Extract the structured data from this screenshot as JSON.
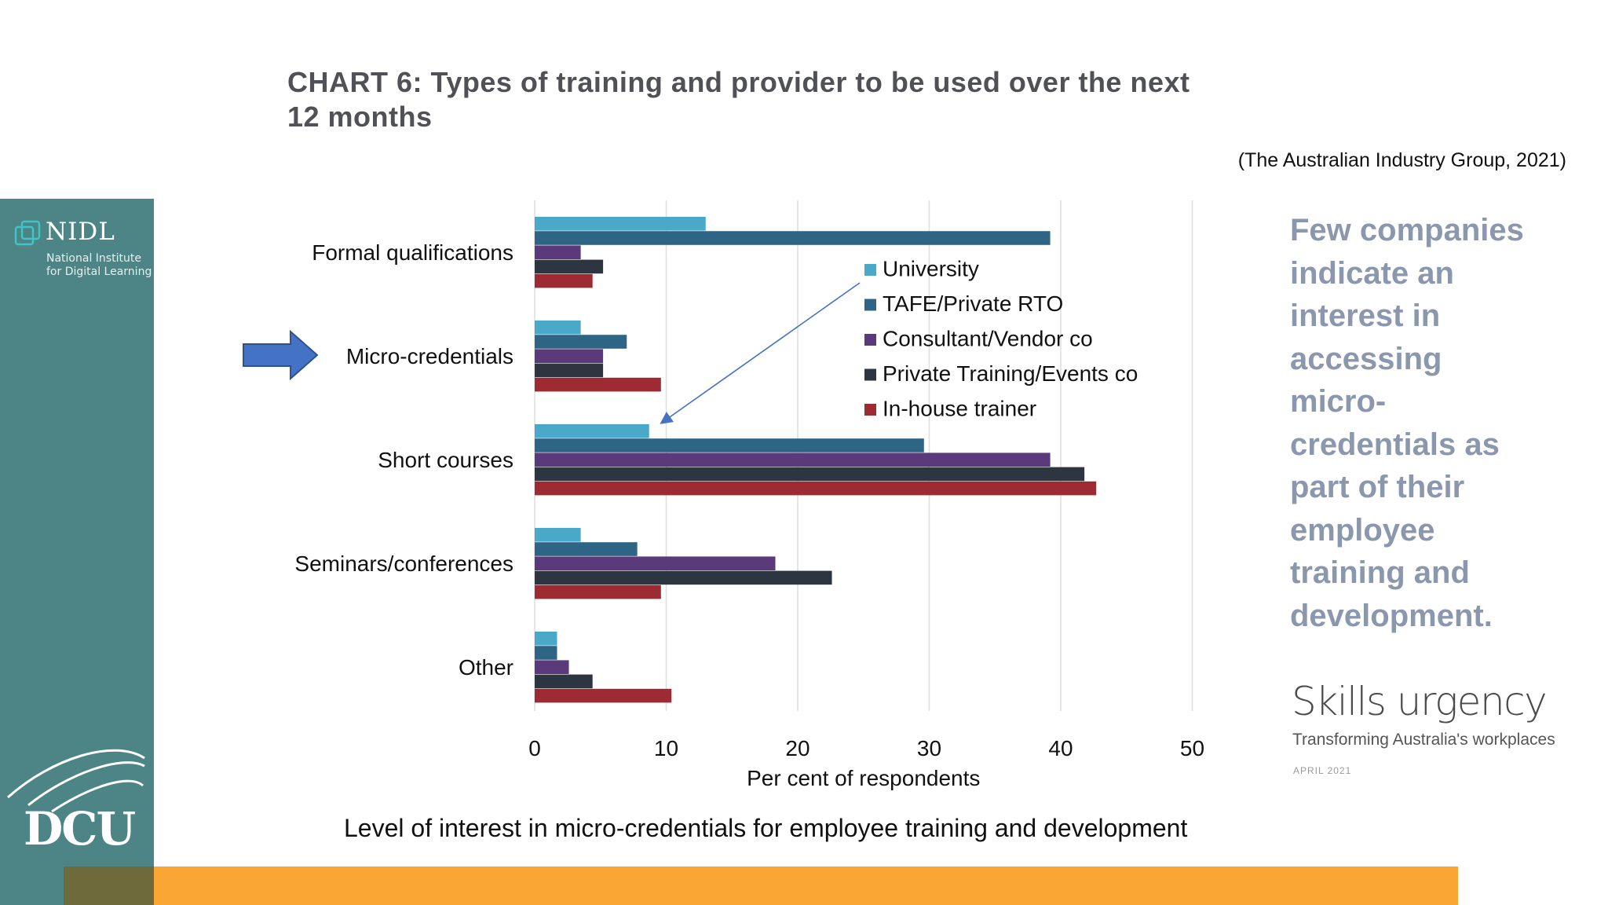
{
  "slide": {
    "title_line1": "CHART 6: Types of training and provider to be used over the next",
    "title_line2": "12 months",
    "citation": "(The Australian Industry Group, 2021)",
    "caption": "Level of interest in micro-credentials for employee training and development",
    "side_note": "Few companies indicate an interest in accessing micro-credentials as part of their employee training and development.",
    "report_title": "Skills urgency",
    "report_subtitle": "Transforming Australia's workplaces",
    "report_date": "APRIL 2021",
    "highlight_arrow": "arrow-right-icon",
    "colors": {
      "sidebar": "#4d8486",
      "bottom_bar": "#f9a634",
      "arrow": "#4472c4"
    }
  },
  "logos": {
    "nidl_name": "NIDL",
    "nidl_sub1": "National Institute",
    "nidl_sub2": "for Digital Learning",
    "dcu": "DCU"
  },
  "chart_data": {
    "type": "bar",
    "orientation": "horizontal",
    "categories": [
      "Formal qualifications",
      "Micro-credentials",
      "Short courses",
      "Seminars/conferences",
      "Other"
    ],
    "series": [
      {
        "name": "University",
        "color": "#4aa9c9",
        "values": [
          13,
          3.5,
          8.7,
          3.5,
          1.7
        ]
      },
      {
        "name": "TAFE/Private RTO",
        "color": "#2e6584",
        "values": [
          39.2,
          7,
          29.6,
          7.8,
          1.7
        ]
      },
      {
        "name": "Consultant/Vendor co",
        "color": "#5a3a7a",
        "values": [
          3.5,
          5.2,
          39.2,
          18.3,
          2.6
        ]
      },
      {
        "name": "Private Training/Events co",
        "color": "#2c3540",
        "values": [
          5.2,
          5.2,
          41.8,
          22.6,
          4.4
        ]
      },
      {
        "name": "In-house trainer",
        "color": "#9e2a33",
        "values": [
          4.4,
          9.6,
          42.7,
          9.6,
          10.4
        ]
      }
    ],
    "xlabel": "Per cent of respondents",
    "xlim": [
      0,
      50
    ],
    "xticks": [
      0,
      10,
      20,
      30,
      40,
      50
    ],
    "grid": true,
    "legend": "inside-right"
  }
}
